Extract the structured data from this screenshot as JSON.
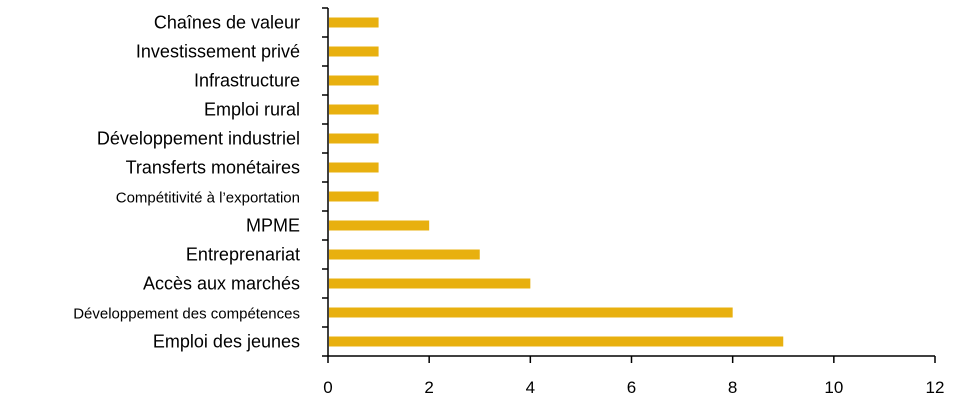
{
  "chart_data": {
    "type": "bar",
    "orientation": "horizontal",
    "title": "",
    "xlabel": "",
    "ylabel": "",
    "categories": [
      "Chaînes de valeur",
      "Investissement privé",
      "Infrastructure",
      "Emploi rural",
      "Développement industriel",
      "Transferts monétaires",
      "Compétitivité à l’exportation",
      "MPME",
      "Entreprenariat",
      "Accès aux marchés",
      "Développement des compétences",
      "Emploi des jeunes"
    ],
    "values": [
      1,
      1,
      1,
      1,
      1,
      1,
      1,
      2,
      3,
      4,
      8,
      9
    ],
    "xlim": [
      0,
      12
    ],
    "xticks": [
      0,
      2,
      4,
      6,
      8,
      10,
      12
    ],
    "bar_color": "#E8B00F",
    "axis_color": "#000000",
    "grid": false,
    "legend": "none"
  }
}
